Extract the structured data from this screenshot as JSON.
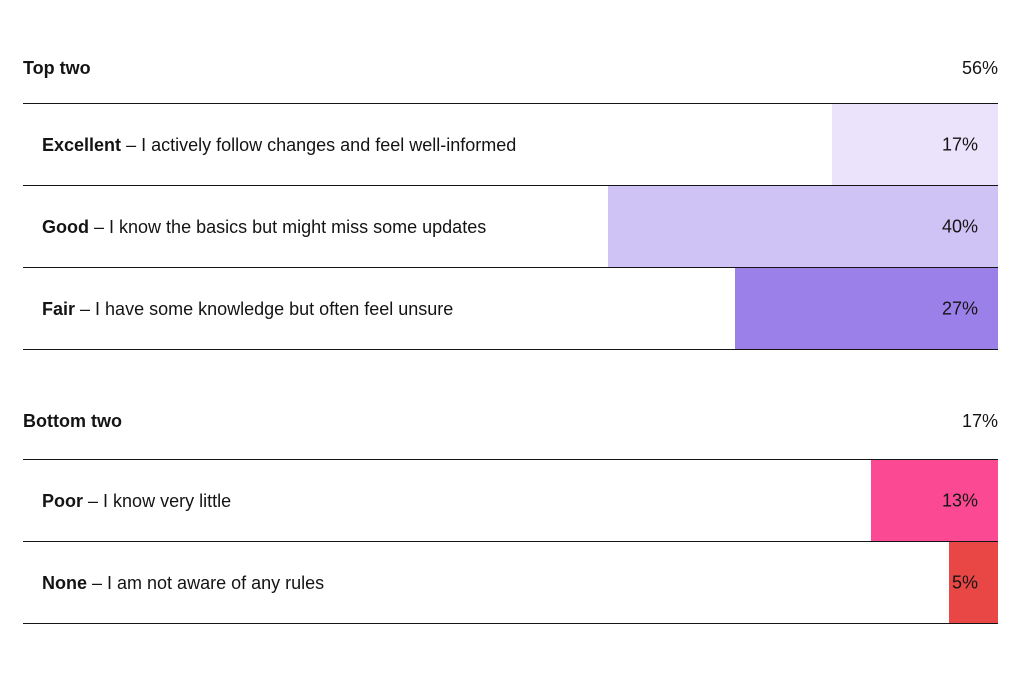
{
  "chart_data": {
    "type": "bar",
    "orientation": "horizontal-right-aligned",
    "value_range": [
      0,
      100
    ],
    "grid": false,
    "legend": false,
    "sections": [
      {
        "title": "Top two",
        "total_label": "56%",
        "rows": [
          {
            "label": "Excellent",
            "description": "– I actively follow changes and feel well-informed",
            "value": 17,
            "value_label": "17%",
            "color": "#EAE3FB"
          },
          {
            "label": "Good",
            "description": "– I know the basics but might miss some updates",
            "value": 40,
            "value_label": "40%",
            "color": "#CFC2F5"
          },
          {
            "label": "Fair",
            "description": "– I have some knowledge but often feel unsure",
            "value": 27,
            "value_label": "27%",
            "color": "#9B80E9"
          }
        ]
      },
      {
        "title": "Bottom two",
        "total_label": "17%",
        "rows": [
          {
            "label": "Poor",
            "description": "– I know very little",
            "value": 13,
            "value_label": "13%",
            "color": "#FB4A93"
          },
          {
            "label": "None",
            "description": "– I am not aware of any rules",
            "value": 5,
            "value_label": "5%",
            "color": "#E94745"
          }
        ]
      }
    ],
    "colors": {
      "text": "#141414",
      "rule_lines": "#141414",
      "background": "#FFFFFF"
    }
  }
}
